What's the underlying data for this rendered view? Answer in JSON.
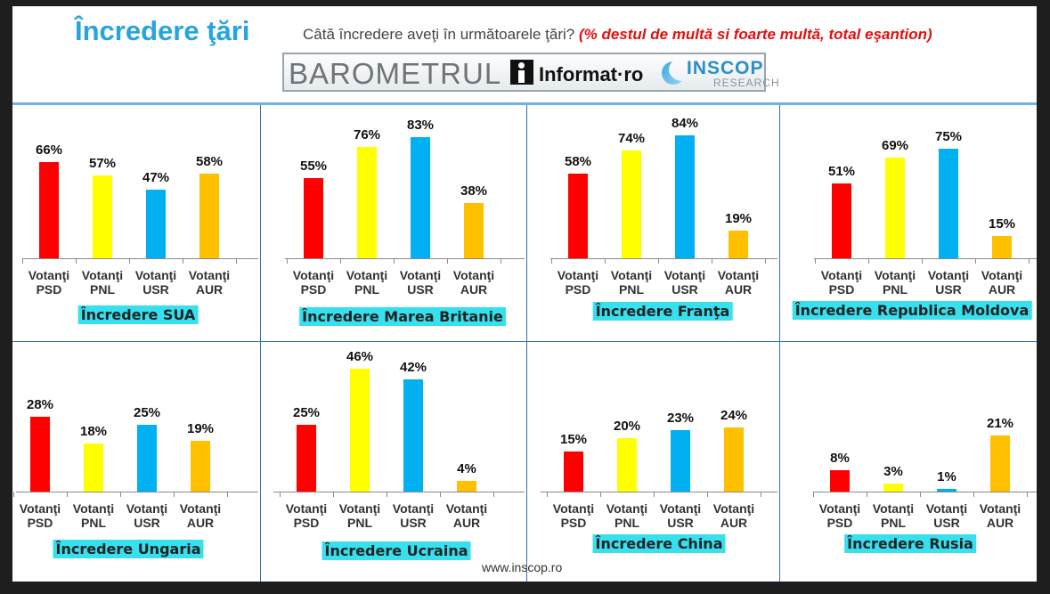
{
  "header": {
    "title": "Încredere ţări",
    "question": "Câtă încredere aveţi în următoarele ţări?",
    "question_note": "(% destul de multă si foarte multă, total eşantion)"
  },
  "banner": {
    "barometer": "BAROMETRUL",
    "informat": "Informat·ro",
    "inscop": "INSCOP",
    "research": "RESEARCH",
    "informat_icon": "informat-logo-icon",
    "inscop_icon": "inscop-logo-icon"
  },
  "footer": {
    "url": "www.inscop.ro"
  },
  "colors": {
    "PSD": "#ff0000",
    "PNL": "#ffff00",
    "USR": "#00b0f0",
    "AUR": "#ffc000",
    "title_bg": "#36e0ee"
  },
  "chart_data": [
    {
      "type": "bar",
      "title": "Încredere SUA",
      "categories": [
        [
          "Votanţi",
          "PSD"
        ],
        [
          "Votanţi",
          "PNL"
        ],
        [
          "Votanţi",
          "USR"
        ],
        [
          "Votanţi",
          "AUR"
        ]
      ],
      "values": [
        66,
        57,
        47,
        58
      ],
      "value_labels": [
        "66%",
        "57%",
        "47%",
        "58%"
      ],
      "ylim": [
        0,
        100
      ]
    },
    {
      "type": "bar",
      "title": "Încredere Marea Britanie",
      "categories": [
        [
          "Votanţi",
          "PSD"
        ],
        [
          "Votanţi",
          "PNL"
        ],
        [
          "Votanţi",
          "USR"
        ],
        [
          "Votanţi",
          "AUR"
        ]
      ],
      "values": [
        55,
        76,
        83,
        38
      ],
      "value_labels": [
        "55%",
        "76%",
        "83%",
        "38%"
      ],
      "ylim": [
        0,
        100
      ]
    },
    {
      "type": "bar",
      "title": "Încredere Franţa",
      "categories": [
        [
          "Votanţi",
          "PSD"
        ],
        [
          "Votanţi",
          "PNL"
        ],
        [
          "Votanţi",
          "USR"
        ],
        [
          "Votanţi",
          "AUR"
        ]
      ],
      "values": [
        58,
        74,
        84,
        19
      ],
      "value_labels": [
        "58%",
        "74%",
        "84%",
        "19%"
      ],
      "ylim": [
        0,
        100
      ]
    },
    {
      "type": "bar",
      "title": "Încredere Republica Moldova",
      "categories": [
        [
          "Votanţi",
          "PSD"
        ],
        [
          "Votanţi",
          "PNL"
        ],
        [
          "Votanţi",
          "USR"
        ],
        [
          "Votanţi",
          "AUR"
        ]
      ],
      "values": [
        51,
        69,
        75,
        15
      ],
      "value_labels": [
        "51%",
        "69%",
        "75%",
        "15%"
      ],
      "ylim": [
        0,
        100
      ]
    },
    {
      "type": "bar",
      "title": "Încredere Ungaria",
      "categories": [
        [
          "Votanţi",
          "PSD"
        ],
        [
          "Votanţi",
          "PNL"
        ],
        [
          "Votanţi",
          "USR"
        ],
        [
          "Votanţi",
          "AUR"
        ]
      ],
      "values": [
        28,
        18,
        25,
        19
      ],
      "value_labels": [
        "28%",
        "18%",
        "25%",
        "19%"
      ],
      "ylim": [
        0,
        50
      ]
    },
    {
      "type": "bar",
      "title": "Încredere Ucraina",
      "categories": [
        [
          "Votanţi",
          "PSD"
        ],
        [
          "Votanţi",
          "PNL"
        ],
        [
          "Votanţi",
          "USR"
        ],
        [
          "Votanţi",
          "AUR"
        ]
      ],
      "values": [
        25,
        46,
        42,
        4
      ],
      "value_labels": [
        "25%",
        "46%",
        "42%",
        "4%"
      ],
      "ylim": [
        0,
        50
      ]
    },
    {
      "type": "bar",
      "title": "Încredere China",
      "categories": [
        [
          "Votanţi",
          "PSD"
        ],
        [
          "Votanţi",
          "PNL"
        ],
        [
          "Votanţi",
          "USR"
        ],
        [
          "Votanţi",
          "AUR"
        ]
      ],
      "values": [
        15,
        20,
        23,
        24
      ],
      "value_labels": [
        "15%",
        "20%",
        "23%",
        "24%"
      ],
      "ylim": [
        0,
        50
      ]
    },
    {
      "type": "bar",
      "title": "Încredere Rusia",
      "categories": [
        [
          "Votanţi",
          "PSD"
        ],
        [
          "Votanţi",
          "PNL"
        ],
        [
          "Votanţi",
          "USR"
        ],
        [
          "Votanţi",
          "AUR"
        ]
      ],
      "values": [
        8,
        3,
        1,
        21
      ],
      "value_labels": [
        "8%",
        "3%",
        "1%",
        "21%"
      ],
      "ylim": [
        0,
        50
      ]
    }
  ]
}
